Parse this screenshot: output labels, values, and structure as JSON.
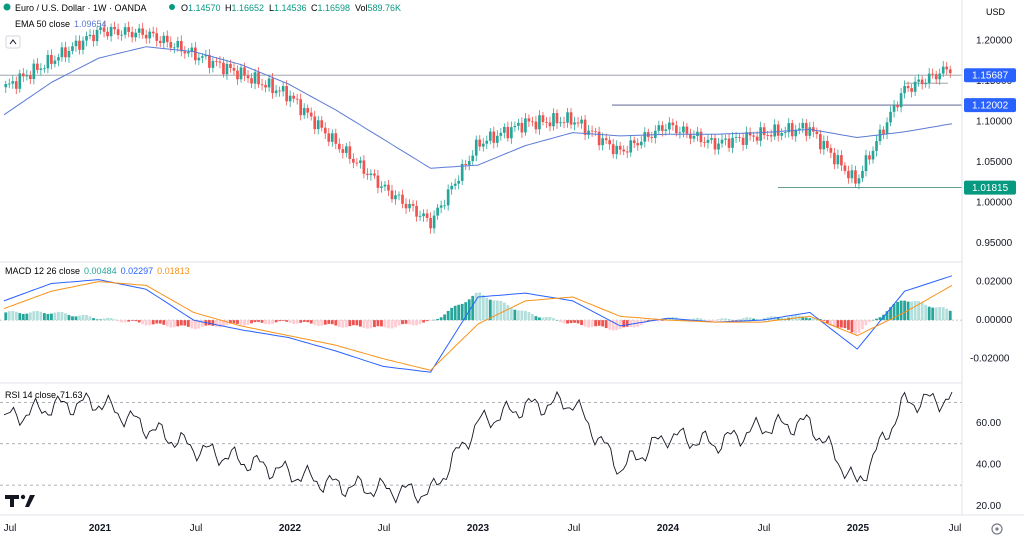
{
  "header": {
    "symbol_title": "Euro / U.S. Dollar · 1W · OANDA",
    "ohlc": [
      {
        "k": "O",
        "v": "1.14570"
      },
      {
        "k": "H",
        "v": "1.16652"
      },
      {
        "k": "L",
        "v": "1.14536"
      },
      {
        "k": "C",
        "v": "1.16598"
      }
    ],
    "vol_label": "Vol",
    "vol_value": "589.76K",
    "currency": "USD",
    "ema_label": "EMA 50 close",
    "ema_value": "1.09654",
    "macd_label": "MACD 12 26 close",
    "macd_values": [
      "0.00484",
      "0.02297",
      "0.01813"
    ],
    "rsi_label": "RSI 14 close",
    "rsi_value": "71.63"
  },
  "colors": {
    "up": "#26a69a",
    "down": "#ef5350",
    "ema": "#5b7bd5",
    "macd": "#2962ff",
    "signal": "#f7931a",
    "rsi": "#131722",
    "level_blue": "#2962ff",
    "level_green": "#089981"
  },
  "time_axis": [
    "Jul",
    "2021",
    "Jul",
    "2022",
    "Jul",
    "2023",
    "Jul",
    "2024",
    "Jul",
    "2025",
    "Jul"
  ],
  "price_axis": [
    "1.20000",
    "1.15000",
    "1.10000",
    "1.05000",
    "1.00000",
    "0.95000"
  ],
  "macd_axis": [
    "0.02000",
    "0.00000",
    "-0.02000"
  ],
  "rsi_axis": [
    "60.00",
    "40.00",
    "20.00"
  ],
  "levels": [
    "1.15687",
    "1.12002",
    "1.01815"
  ],
  "chart_data": [
    {
      "type": "candlestick",
      "title": "Euro / U.S. Dollar · 1W · OANDA",
      "x": [
        "2020-07",
        "2020-10",
        "2021-01",
        "2021-04",
        "2021-07",
        "2021-10",
        "2022-01",
        "2022-04",
        "2022-07",
        "2022-10",
        "2023-01",
        "2023-04",
        "2023-07",
        "2023-10",
        "2024-01",
        "2024-04",
        "2024-07",
        "2024-10",
        "2025-01",
        "2025-04",
        "2025-07"
      ],
      "close": [
        1.142,
        1.176,
        1.212,
        1.208,
        1.182,
        1.158,
        1.132,
        1.072,
        1.018,
        0.975,
        1.072,
        1.098,
        1.102,
        1.062,
        1.095,
        1.072,
        1.084,
        1.092,
        1.025,
        1.138,
        1.166
      ],
      "ylim": [
        0.935,
        1.225
      ],
      "ema50": {
        "name": "EMA 50 close",
        "values": [
          1.108,
          1.148,
          1.178,
          1.192,
          1.186,
          1.17,
          1.146,
          1.114,
          1.078,
          1.042,
          1.046,
          1.07,
          1.086,
          1.082,
          1.084,
          1.084,
          1.086,
          1.09,
          1.08,
          1.087,
          1.097
        ]
      },
      "levels": [
        1.15687,
        1.12002,
        1.01815
      ]
    },
    {
      "type": "line",
      "title": "MACD 12 26 close",
      "x": [
        "2020-07",
        "2020-10",
        "2021-01",
        "2021-04",
        "2021-07",
        "2021-10",
        "2022-01",
        "2022-04",
        "2022-07",
        "2022-10",
        "2023-01",
        "2023-04",
        "2023-07",
        "2023-10",
        "2024-01",
        "2024-04",
        "2024-07",
        "2024-10",
        "2025-01",
        "2025-04",
        "2025-07"
      ],
      "series": [
        {
          "name": "MACD",
          "values": [
            0.01,
            0.019,
            0.021,
            0.016,
            0.0,
            -0.005,
            -0.009,
            -0.016,
            -0.024,
            -0.027,
            0.012,
            0.014,
            0.01,
            -0.003,
            0.001,
            -0.001,
            0.0,
            0.004,
            -0.015,
            0.015,
            0.023
          ]
        },
        {
          "name": "Signal",
          "values": [
            0.006,
            0.015,
            0.02,
            0.018,
            0.004,
            -0.003,
            -0.008,
            -0.013,
            -0.02,
            -0.026,
            -0.002,
            0.01,
            0.012,
            0.002,
            0.0,
            -0.001,
            -0.001,
            0.002,
            -0.008,
            0.004,
            0.018
          ]
        },
        {
          "name": "Histogram",
          "values": [
            0.004,
            0.004,
            0.001,
            -0.002,
            -0.004,
            -0.002,
            -0.001,
            -0.003,
            -0.004,
            -0.001,
            0.014,
            0.004,
            -0.002,
            -0.005,
            0.001,
            0.0,
            0.001,
            0.002,
            -0.007,
            0.011,
            0.005
          ]
        }
      ],
      "ylim": [
        -0.03,
        0.026
      ]
    },
    {
      "type": "line",
      "title": "RSI 14 close",
      "x": [
        "2020-07",
        "2020-10",
        "2021-01",
        "2021-04",
        "2021-07",
        "2021-10",
        "2022-01",
        "2022-04",
        "2022-07",
        "2022-10",
        "2023-01",
        "2023-04",
        "2023-07",
        "2023-10",
        "2024-01",
        "2024-04",
        "2024-07",
        "2024-10",
        "2025-01",
        "2025-04",
        "2025-07"
      ],
      "values": [
        62,
        68,
        70,
        58,
        48,
        42,
        36,
        30,
        28,
        26,
        60,
        68,
        70,
        38,
        54,
        50,
        58,
        60,
        30,
        70,
        71.63
      ],
      "ylim": [
        18,
        75
      ],
      "bands": [
        70,
        50,
        30
      ]
    }
  ]
}
